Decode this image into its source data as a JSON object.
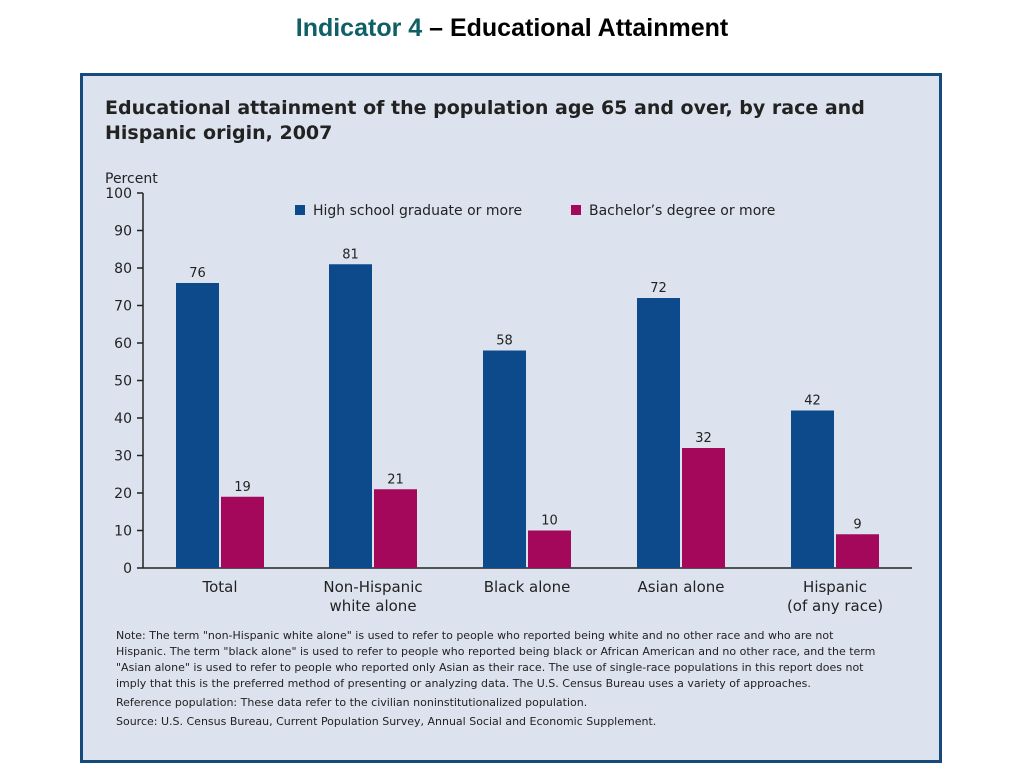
{
  "slide_title": {
    "accent": "Indicator 4",
    "rest": " – Educational Attainment"
  },
  "chart_data": {
    "type": "bar",
    "title": "Educational attainment of the population age 65 and over, by race and Hispanic origin, 2007",
    "ylabel": "Percent",
    "xlabel": "",
    "ylim": [
      0,
      100
    ],
    "yticks": [
      0,
      10,
      20,
      30,
      40,
      50,
      60,
      70,
      80,
      90,
      100
    ],
    "categories": [
      "Total",
      "Non-Hispanic\nwhite alone",
      "Black alone",
      "Asian alone",
      "Hispanic\n(of any race)"
    ],
    "series": [
      {
        "name": "High school graduate or more",
        "color": "#0d4a8c",
        "values": [
          76,
          81,
          58,
          72,
          42
        ]
      },
      {
        "name": "Bachelor’s degree or more",
        "color": "#a3085a",
        "values": [
          19,
          21,
          10,
          32,
          9
        ]
      }
    ],
    "grid": false,
    "legend_position": "top"
  },
  "notes": {
    "note": "Note: The term \"non-Hispanic white alone\" is used to refer to people who reported being white and no other race and who are not Hispanic. The term \"black alone\" is used to refer to people who reported being black or African American and no other race, and the term \"Asian alone\" is used to refer to people who reported only Asian as their race. The use of single-race populations in this report does not imply that this is the preferred method of presenting or analyzing data. The U.S. Census Bureau uses a variety of approaches.",
    "reference": "Reference population: These data refer to the civilian noninstitutionalized population.",
    "source": "Source: U.S. Census Bureau, Current Population Survey, Annual Social and Economic Supplement."
  },
  "colors": {
    "accent": "#0f5f66",
    "panel_background": "#dde3ee",
    "panel_border": "#174a7c"
  }
}
